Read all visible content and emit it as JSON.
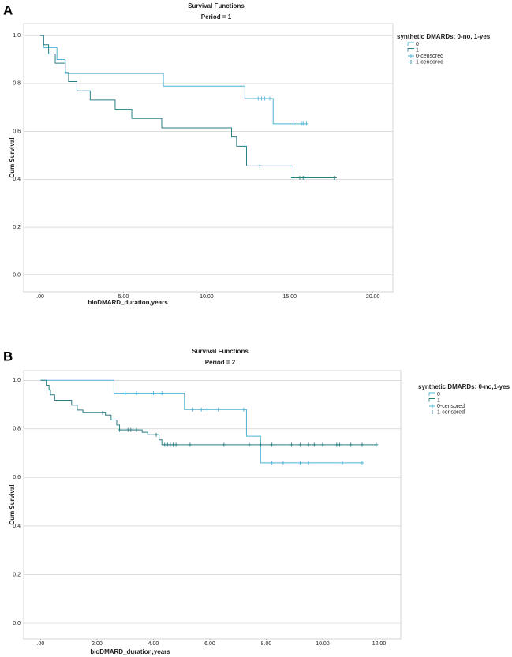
{
  "chart_data": [
    {
      "type": "step",
      "panel_label": "A",
      "title": "Survival Functions",
      "subtitle": "Period = 1",
      "x_label": "bioDMARD_duration,years",
      "y_label": "Cum Survival",
      "legend_title": "synthetic DMARDs: 0-no, 1-yes",
      "grid": true,
      "xlim": [
        -1,
        21.2
      ],
      "ylim": [
        -0.07,
        1.05
      ],
      "xticks": [
        {
          "value": 0,
          "label": ".00"
        },
        {
          "value": 5,
          "label": "5.00"
        },
        {
          "value": 10,
          "label": "10.00"
        },
        {
          "value": 15,
          "label": "15.00"
        },
        {
          "value": 20,
          "label": "20.00"
        }
      ],
      "yticks": [
        {
          "value": 0,
          "label": "0.0"
        },
        0.2,
        0.4,
        0.6,
        0.8,
        {
          "value": 1,
          "label": "1.0"
        }
      ],
      "series": [
        {
          "name": "0",
          "color": "#4fb3d3",
          "style": "step",
          "x": [
            0,
            0.2,
            1.0,
            1.5,
            7.4,
            12.3,
            14.0,
            16.0
          ],
          "values": [
            1.0,
            0.95,
            0.9,
            0.842,
            0.789,
            0.737,
            0.632,
            0.632
          ]
        },
        {
          "name": "1",
          "color": "#2a7f86",
          "style": "step",
          "x": [
            0,
            0.2,
            0.5,
            0.9,
            1.5,
            1.7,
            2.2,
            3.0,
            4.5,
            5.5,
            7.3,
            11.5,
            11.8,
            12.4,
            15.2,
            17.7
          ],
          "values": [
            1.0,
            0.962,
            0.923,
            0.885,
            0.846,
            0.808,
            0.769,
            0.731,
            0.692,
            0.654,
            0.615,
            0.577,
            0.538,
            0.456,
            0.406,
            0.406
          ]
        },
        {
          "name": "0-censored",
          "color": "#4fb3d3",
          "style": "censored",
          "x": [
            13.1,
            13.3,
            13.5,
            13.8,
            15.2,
            15.7,
            15.8,
            16.0
          ],
          "values": [
            0.737,
            0.737,
            0.737,
            0.737,
            0.632,
            0.632,
            0.632,
            0.632
          ]
        },
        {
          "name": "1-censored",
          "color": "#2a7f86",
          "style": "censored",
          "x": [
            12.3,
            13.2,
            15.2,
            15.6,
            15.8,
            15.9,
            16.1,
            17.7
          ],
          "values": [
            0.538,
            0.456,
            0.406,
            0.406,
            0.406,
            0.406,
            0.406,
            0.406
          ]
        }
      ]
    },
    {
      "type": "step",
      "panel_label": "B",
      "title": "Survival Functions",
      "subtitle": "Period = 2",
      "x_label": "bioDMARD_duration,years",
      "y_label": "Cum Survival",
      "legend_title": "synthetic DMARDs: 0-no,1-yes",
      "grid": true,
      "xlim": [
        -0.6,
        12.77
      ],
      "ylim": [
        -0.065,
        1.04
      ],
      "xticks": [
        {
          "value": 0,
          "label": ".00"
        },
        {
          "value": 2,
          "label": "2.00"
        },
        {
          "value": 4,
          "label": "4.00"
        },
        {
          "value": 6,
          "label": "6.00"
        },
        {
          "value": 8,
          "label": "8.00"
        },
        {
          "value": 10,
          "label": "10.00"
        },
        {
          "value": 12,
          "label": "12.00"
        }
      ],
      "yticks": [
        {
          "value": 0,
          "label": "0.0"
        },
        0.2,
        0.4,
        0.6,
        0.8,
        {
          "value": 1,
          "label": "1.0"
        }
      ],
      "series": [
        {
          "name": "0",
          "color": "#4fb3d3",
          "style": "step",
          "x": [
            0,
            2.6,
            5.1,
            7.3,
            7.8,
            11.4
          ],
          "values": [
            1.0,
            0.947,
            0.88,
            0.77,
            0.66,
            0.66
          ]
        },
        {
          "name": "1",
          "color": "#2a7f86",
          "style": "step",
          "x": [
            0,
            0.2,
            0.3,
            0.35,
            0.5,
            1.1,
            1.3,
            1.5,
            2.3,
            2.5,
            2.7,
            2.8,
            3.6,
            3.8,
            4.2,
            4.3,
            11.9
          ],
          "values": [
            1.0,
            0.98,
            0.96,
            0.94,
            0.918,
            0.898,
            0.878,
            0.867,
            0.857,
            0.837,
            0.816,
            0.796,
            0.786,
            0.776,
            0.755,
            0.735,
            0.735
          ]
        },
        {
          "name": "0-censored",
          "color": "#4fb3d3",
          "style": "censored",
          "x": [
            3.0,
            3.4,
            4.0,
            4.3,
            5.4,
            5.7,
            5.9,
            6.3,
            7.2,
            8.2,
            8.6,
            9.2,
            9.5,
            10.7,
            11.4
          ],
          "values": [
            0.947,
            0.947,
            0.947,
            0.947,
            0.88,
            0.88,
            0.88,
            0.88,
            0.88,
            0.66,
            0.66,
            0.66,
            0.66,
            0.66,
            0.66
          ]
        },
        {
          "name": "1-censored",
          "color": "#2a7f86",
          "style": "censored",
          "x": [
            2.2,
            2.8,
            3.1,
            3.2,
            3.4,
            4.1,
            4.4,
            4.5,
            4.6,
            4.7,
            4.8,
            5.3,
            6.5,
            7.4,
            7.8,
            8.2,
            8.9,
            9.2,
            9.5,
            9.7,
            10.0,
            10.5,
            10.6,
            11.0,
            11.4,
            11.9
          ],
          "values": [
            0.867,
            0.796,
            0.796,
            0.796,
            0.796,
            0.776,
            0.735,
            0.735,
            0.735,
            0.735,
            0.735,
            0.735,
            0.735,
            0.735,
            0.735,
            0.735,
            0.735,
            0.735,
            0.735,
            0.735,
            0.735,
            0.735,
            0.735,
            0.735,
            0.735,
            0.735
          ]
        }
      ]
    }
  ]
}
